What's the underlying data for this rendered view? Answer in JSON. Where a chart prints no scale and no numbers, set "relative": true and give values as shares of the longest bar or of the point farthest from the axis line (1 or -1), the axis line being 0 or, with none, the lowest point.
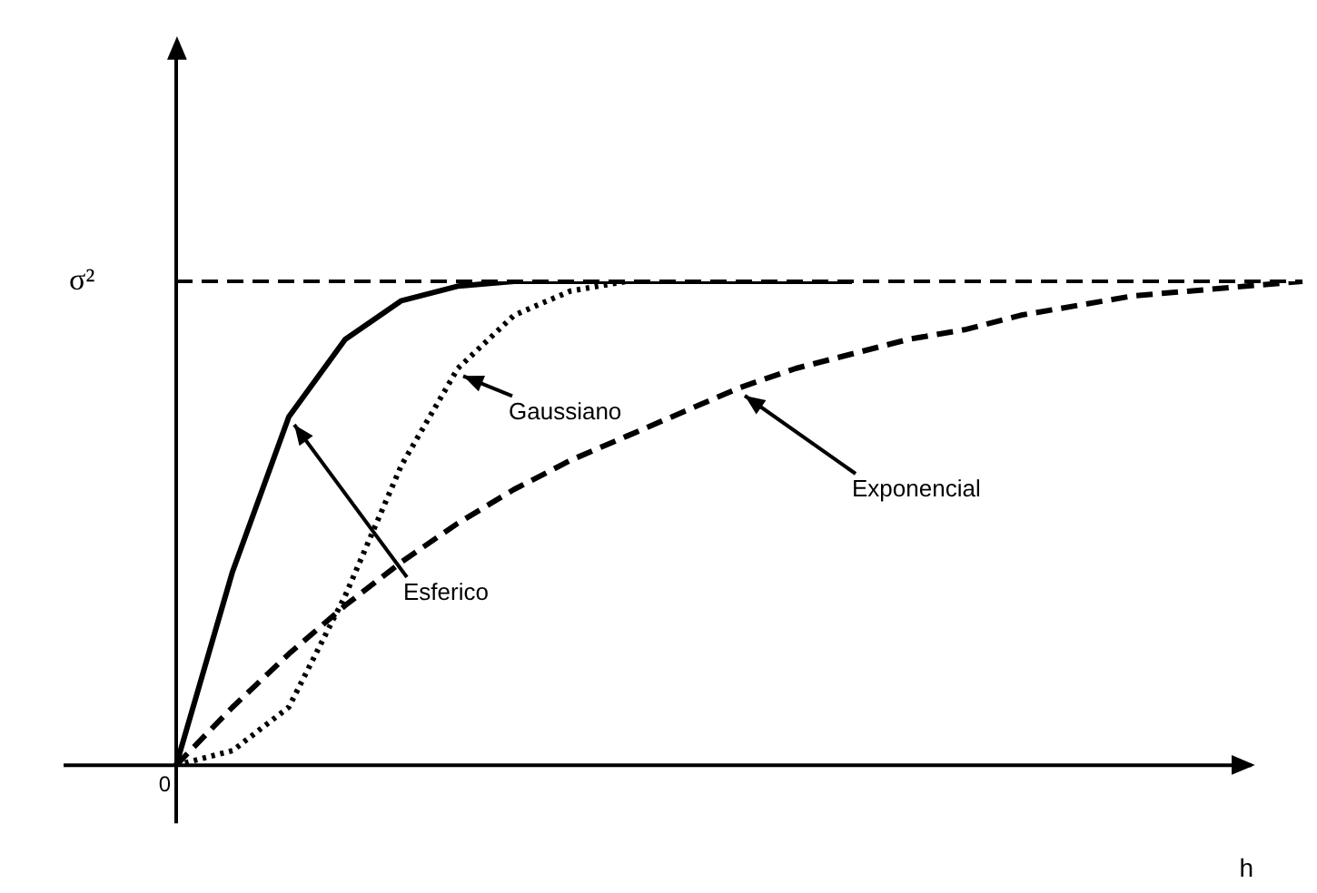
{
  "chart_data": {
    "type": "line",
    "relative": true,
    "xlabel": "h",
    "marker": "none",
    "annotations": [
      "0",
      "Esferico",
      "Gaussiano",
      "Exponencial"
    ],
    "categories": [
      null,
      null,
      null,
      null,
      null,
      null,
      null,
      null,
      null,
      null,
      null,
      null,
      null,
      null,
      null,
      null,
      null,
      null,
      null,
      null,
      null
    ],
    "series": [
      {
        "color": "#000000",
        "line_style": "solid",
        "values": [
          0,
          0.4,
          0.72,
          0.88,
          0.96,
          0.99,
          1,
          1,
          1,
          1,
          1,
          1,
          1,
          null,
          null,
          null,
          null,
          null,
          null,
          null,
          null
        ]
      },
      {
        "color": "#000000",
        "line_style": "dotted",
        "values": [
          0,
          0.03,
          0.12,
          0.35,
          0.62,
          0.82,
          0.93,
          0.98,
          1,
          1,
          null,
          null,
          null,
          null,
          null,
          null,
          null,
          null,
          null,
          null,
          null
        ]
      },
      {
        "color": "#000000",
        "line_style": "dashed",
        "values": [
          0,
          0.12,
          0.23,
          0.33,
          0.42,
          0.5,
          0.57,
          0.63,
          0.68,
          0.73,
          0.78,
          0.82,
          0.85,
          0.88,
          0.9,
          0.93,
          0.95,
          0.97,
          0.98,
          0.99,
          1
        ]
      }
    ],
    "ref_lines": [
      {
        "axis": "y",
        "value": 1,
        "label": "σ²",
        "line_style": "dashed"
      }
    ]
  }
}
